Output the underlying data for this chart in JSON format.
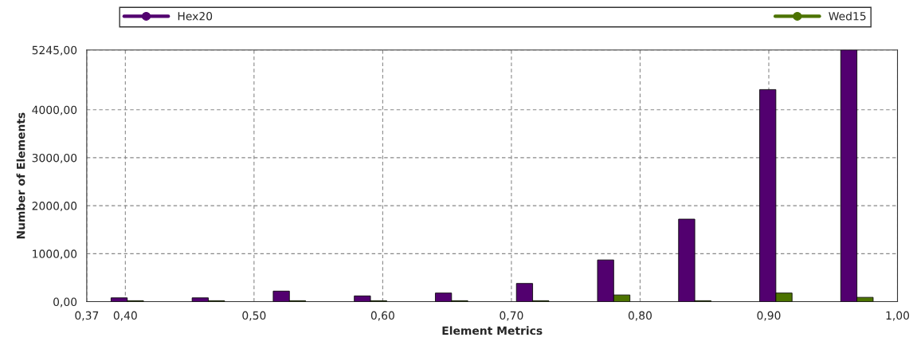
{
  "chart_data": {
    "type": "bar",
    "xlabel": "Element Metrics",
    "ylabel": "Number of Elements",
    "x": [
      0.4015,
      0.4645,
      0.5275,
      0.5905,
      0.6535,
      0.7165,
      0.7795,
      0.8425,
      0.9055,
      0.9685
    ],
    "series": [
      {
        "name": "Hex20",
        "color": "#52006f",
        "values": [
          80,
          80,
          220,
          120,
          180,
          380,
          870,
          1720,
          4420,
          5245
        ]
      },
      {
        "name": "Wed15",
        "color": "#4c7300",
        "values": [
          20,
          20,
          20,
          20,
          20,
          20,
          140,
          20,
          180,
          90
        ]
      }
    ],
    "xlim": [
      0.37,
      1.0
    ],
    "xticks": [
      {
        "value": 0.37,
        "label": "0,37"
      },
      {
        "value": 0.4,
        "label": "0,40"
      },
      {
        "value": 0.5,
        "label": "0,50"
      },
      {
        "value": 0.6,
        "label": "0,60"
      },
      {
        "value": 0.7,
        "label": "0,70"
      },
      {
        "value": 0.8,
        "label": "0,80"
      },
      {
        "value": 0.9,
        "label": "0,90"
      },
      {
        "value": 1.0,
        "label": "1,00"
      }
    ],
    "ylim": [
      0,
      5245
    ],
    "yticks": [
      {
        "value": 0,
        "label": "0,00"
      },
      {
        "value": 1000,
        "label": "1000,00"
      },
      {
        "value": 2000,
        "label": "2000,00"
      },
      {
        "value": 3000,
        "label": "3000,00"
      },
      {
        "value": 4000,
        "label": "4000,00"
      },
      {
        "value": 5245,
        "label": "5245,00"
      }
    ],
    "grid": true,
    "legend": "top",
    "marker": "circle"
  }
}
